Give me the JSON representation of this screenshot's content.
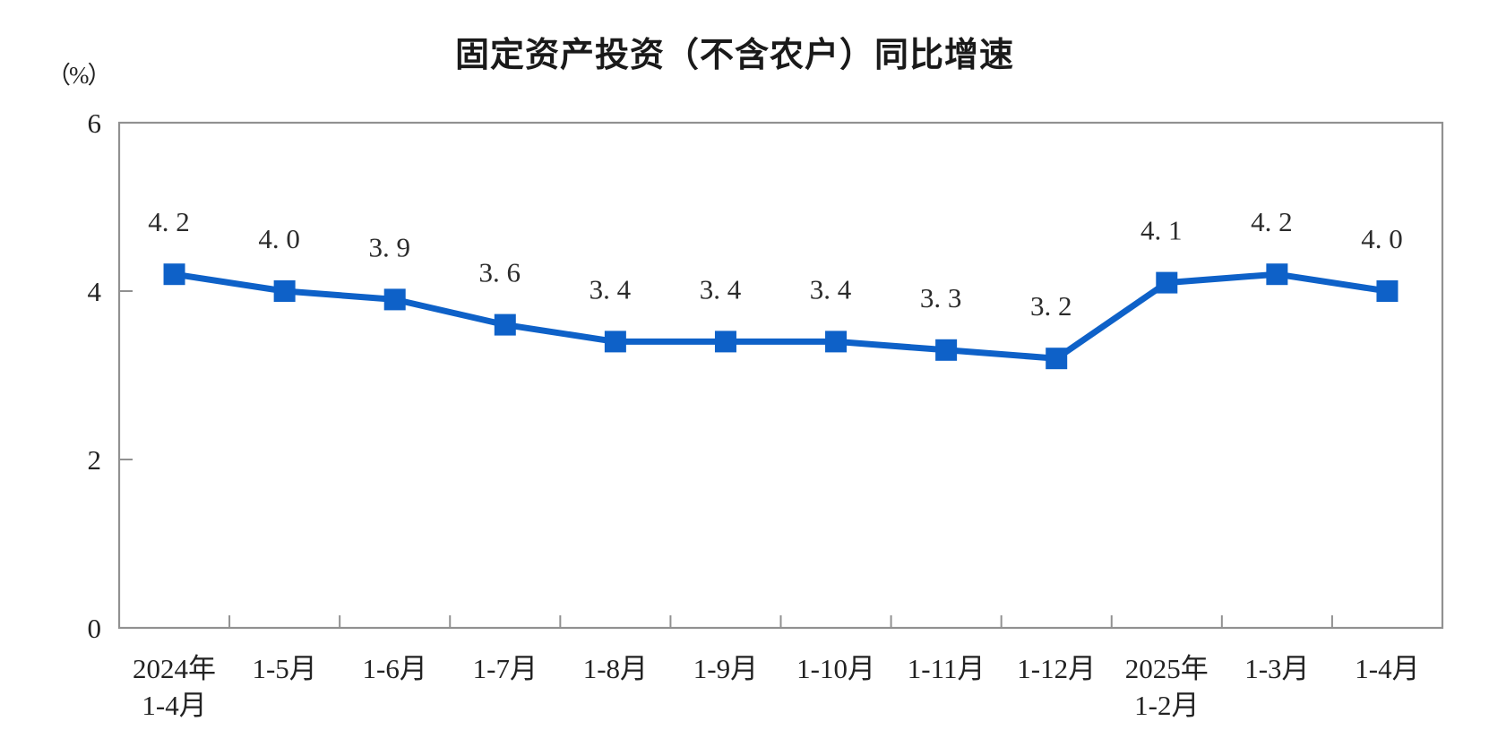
{
  "page": {
    "background": "#ffffff"
  },
  "colors": {
    "line": "#0e61c8",
    "marker": "#0e61c8",
    "axis": "#919191",
    "tick_text": "#222222",
    "point_label_text": "#2b2b2b",
    "title_text": "#1a1a1a"
  },
  "chart_data": {
    "type": "line",
    "title": "固定资产投资（不含农户）同比增速",
    "ylabel": "（%）",
    "xlabel": "",
    "categories": [
      "2024年\n1-4月",
      "1-5月",
      "1-6月",
      "1-7月",
      "1-8月",
      "1-9月",
      "1-10月",
      "1-11月",
      "1-12月",
      "2025年\n1-2月",
      "1-3月",
      "1-4月"
    ],
    "series": [
      {
        "name": "固定资产投资（不含农户）同比增速",
        "values": [
          4.2,
          4.0,
          3.9,
          3.6,
          3.4,
          3.4,
          3.4,
          3.3,
          3.2,
          4.1,
          4.2,
          4.0
        ]
      }
    ],
    "point_labels": [
      "4. 2",
      "4. 0",
      "3. 9",
      "3. 6",
      "3. 4",
      "3. 4",
      "3. 4",
      "3. 3",
      "3. 2",
      "4. 1",
      "4. 2",
      "4. 0"
    ],
    "ylim": [
      0,
      6
    ],
    "yticks": [
      0,
      2,
      4,
      6
    ],
    "grid": false,
    "legend_position": "none",
    "marker": "square",
    "line_style": "solid"
  }
}
